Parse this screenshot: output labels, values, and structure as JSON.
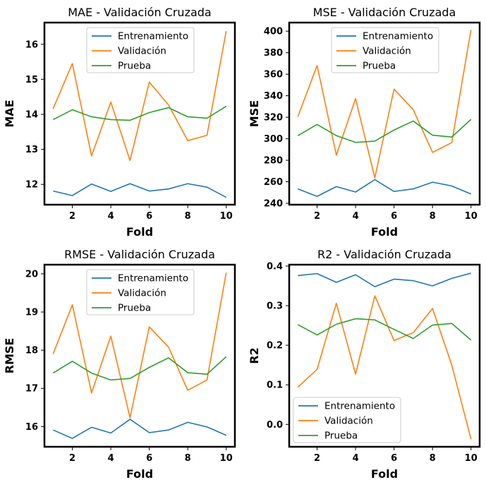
{
  "colors": {
    "train": "#1f77b4",
    "val": "#ff7f0e",
    "test": "#2ca02c"
  },
  "chart_data": [
    {
      "type": "line",
      "title": "MAE - Validación Cruzada",
      "xlabel": "Fold",
      "ylabel": "MAE",
      "x": [
        1,
        2,
        3,
        4,
        5,
        6,
        7,
        8,
        9,
        10
      ],
      "xticks": [
        2,
        4,
        6,
        8,
        10
      ],
      "xlim": [
        0.55,
        10.45
      ],
      "ylim": [
        11.42,
        16.62
      ],
      "yticks": [
        12,
        13,
        14,
        15,
        16
      ],
      "legend_position": "upper-center",
      "series": [
        {
          "name": "Entrenamiento",
          "color": "#1f77b4",
          "values": [
            11.81,
            11.68,
            12.01,
            11.8,
            12.02,
            11.81,
            11.87,
            12.02,
            11.92,
            11.63
          ]
        },
        {
          "name": "Validación",
          "color": "#ff7f0e",
          "values": [
            14.16,
            15.45,
            12.81,
            14.35,
            12.68,
            14.92,
            14.27,
            13.25,
            13.4,
            16.38
          ]
        },
        {
          "name": "Prueba",
          "color": "#2ca02c",
          "values": [
            13.85,
            14.13,
            13.93,
            13.85,
            13.83,
            14.05,
            14.19,
            13.93,
            13.89,
            14.23
          ]
        }
      ]
    },
    {
      "type": "line",
      "title": "MSE - Validación Cruzada",
      "xlabel": "Fold",
      "ylabel": "MSE",
      "x": [
        1,
        2,
        3,
        4,
        5,
        6,
        7,
        8,
        9,
        10
      ],
      "xticks": [
        2,
        4,
        6,
        8,
        10
      ],
      "xlim": [
        0.55,
        10.45
      ],
      "ylim": [
        238.7,
        408.0
      ],
      "yticks": [
        240,
        260,
        280,
        300,
        320,
        340,
        360,
        380,
        400
      ],
      "legend_position": "upper-center",
      "series": [
        {
          "name": "Entrenamiento",
          "color": "#1f77b4",
          "values": [
            253.4,
            246.4,
            255.5,
            250.5,
            262.0,
            251.0,
            253.4,
            259.6,
            256.1,
            248.6
          ]
        },
        {
          "name": "Validación",
          "color": "#ff7f0e",
          "values": [
            320.4,
            368.1,
            284.8,
            337.3,
            263.6,
            346.1,
            327.0,
            287.3,
            296.4,
            401.3
          ]
        },
        {
          "name": "Prueba",
          "color": "#2ca02c",
          "values": [
            302.9,
            313.3,
            302.9,
            296.6,
            297.8,
            308.1,
            316.5,
            303.3,
            301.6,
            318.0
          ]
        }
      ]
    },
    {
      "type": "line",
      "title": "RMSE - Validación Cruzada",
      "xlabel": "Fold",
      "ylabel": "RMSE",
      "x": [
        1,
        2,
        3,
        4,
        5,
        6,
        7,
        8,
        9,
        10
      ],
      "xticks": [
        2,
        4,
        6,
        8,
        10
      ],
      "xlim": [
        0.55,
        10.45
      ],
      "ylim": [
        15.47,
        20.24
      ],
      "yticks": [
        16,
        17,
        18,
        19,
        20
      ],
      "legend_position": "upper-center",
      "series": [
        {
          "name": "Entrenamiento",
          "color": "#1f77b4",
          "values": [
            15.91,
            15.69,
            15.98,
            15.83,
            16.19,
            15.84,
            15.91,
            16.11,
            15.99,
            15.77
          ]
        },
        {
          "name": "Validación",
          "color": "#ff7f0e",
          "values": [
            17.9,
            19.19,
            16.88,
            18.37,
            16.23,
            18.61,
            18.08,
            16.95,
            17.22,
            20.03
          ]
        },
        {
          "name": "Prueba",
          "color": "#2ca02c",
          "values": [
            17.4,
            17.71,
            17.4,
            17.22,
            17.26,
            17.55,
            17.8,
            17.41,
            17.37,
            17.83
          ]
        }
      ]
    },
    {
      "type": "line",
      "title": "R2 - Validación Cruzada",
      "xlabel": "Fold",
      "ylabel": "R2",
      "x": [
        1,
        2,
        3,
        4,
        5,
        6,
        7,
        8,
        9,
        10
      ],
      "xticks": [
        2,
        4,
        6,
        8,
        10
      ],
      "xlim": [
        0.55,
        10.45
      ],
      "ylim": [
        -0.0565,
        0.4035
      ],
      "yticks": [
        0.0,
        0.1,
        0.2,
        0.3,
        0.4
      ],
      "ytick_labels": [
        "0.0",
        "0.1",
        "0.2",
        "0.3",
        "0.4"
      ],
      "legend_position": "lower-left",
      "series": [
        {
          "name": "Entrenamiento",
          "color": "#1f77b4",
          "values": [
            0.376,
            0.381,
            0.359,
            0.378,
            0.348,
            0.367,
            0.363,
            0.35,
            0.369,
            0.382
          ]
        },
        {
          "name": "Validación",
          "color": "#ff7f0e",
          "values": [
            0.094,
            0.139,
            0.306,
            0.127,
            0.325,
            0.212,
            0.232,
            0.293,
            0.15,
            -0.037
          ]
        },
        {
          "name": "Prueba",
          "color": "#2ca02c",
          "values": [
            0.252,
            0.226,
            0.253,
            0.267,
            0.264,
            0.24,
            0.217,
            0.251,
            0.255,
            0.213
          ]
        }
      ]
    }
  ]
}
